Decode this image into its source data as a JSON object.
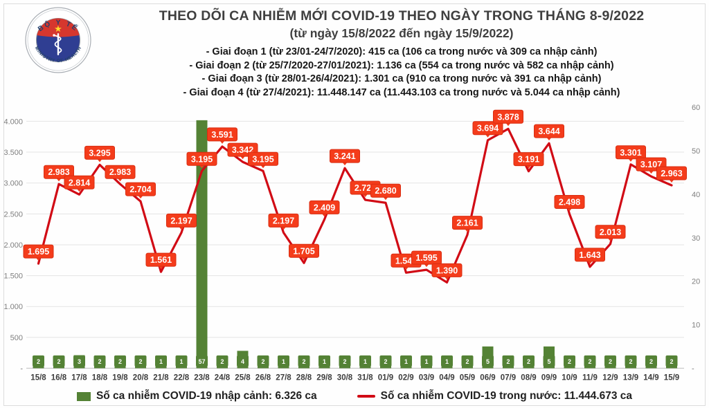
{
  "logo": {
    "top_text": "BỘ Y TẾ",
    "bottom_text": "MINISTRY OF HEALTH",
    "star": "★",
    "colors": {
      "ring": "#a8adb3",
      "disc_blue": "#2f3e92",
      "band_red": "#d6372e",
      "star_yellow": "#ffd92b",
      "text_navy": "#23406e"
    }
  },
  "header": {
    "title": "THEO DÕI CA NHIỄM MỚI COVID-19 THEO NGÀY TRONG THÁNG 8-9/2022",
    "subtitle": "(từ ngày 15/8/2022 đến ngày 15/9/2022)",
    "phases": [
      "- Giai đoạn 1 (từ 23/01-24/7/2020): 415 ca (106 ca trong nước và 309 ca nhập cảnh)",
      "- Giai đoạn 2 (từ 25/7/2020-27/01/2021): 1.136 ca (554 ca trong nước và 582 ca nhập cảnh)",
      "- Giai đoạn 3 (từ 28/01-26/4/2021): 1.301 ca (910 ca trong nước và 391 ca nhập cảnh)",
      "- Giai đoạn 4 (từ 27/4/2021): 11.448.147 ca (11.443.103 ca trong nước và 5.044 ca nhập cảnh)"
    ]
  },
  "chart_data": {
    "type": "combo",
    "title": "",
    "grid": true,
    "legend_position": "bottom",
    "categories": [
      "15/8",
      "16/8",
      "17/8",
      "18/8",
      "19/8",
      "20/8",
      "21/8",
      "22/8",
      "23/8",
      "24/8",
      "25/8",
      "26/8",
      "27/8",
      "28/8",
      "29/8",
      "30/8",
      "31/8",
      "01/9",
      "02/9",
      "03/9",
      "04/9",
      "05/9",
      "06/9",
      "07/9",
      "08/9",
      "09/9",
      "10/9",
      "11/9",
      "12/9",
      "13/9",
      "14/9",
      "15/9"
    ],
    "series": [
      {
        "name": "Số ca nhiễm COVID-19 nhập cảnh",
        "type": "bar",
        "axis": "right",
        "color": "#548235",
        "values": [
          2,
          2,
          3,
          2,
          2,
          2,
          1,
          1,
          57,
          2,
          4,
          2,
          1,
          2,
          1,
          2,
          1,
          2,
          1,
          1,
          1,
          2,
          5,
          2,
          2,
          5,
          2,
          2,
          2,
          2,
          2,
          2
        ],
        "value_labels": [
          "2",
          "2",
          "3",
          "2",
          "2",
          "2",
          "1",
          "1",
          "57",
          "2",
          "4",
          "2",
          "1",
          "2",
          "1",
          "2",
          "1",
          "2",
          "1",
          "1",
          "1",
          "2",
          "5",
          "2",
          "2",
          "5",
          "2",
          "2",
          "2",
          "2",
          "2",
          "2"
        ]
      },
      {
        "name": "Số ca nhiễm COVID-19 trong nước",
        "type": "line",
        "axis": "left",
        "color": "#d10b15",
        "values": [
          1695,
          2983,
          2814,
          3295,
          2983,
          2704,
          1561,
          2197,
          3195,
          3591,
          3342,
          3195,
          2197,
          1705,
          2409,
          3241,
          2727,
          2680,
          1548,
          1595,
          1390,
          2161,
          3694,
          3878,
          3191,
          3644,
          2498,
          1643,
          2013,
          3301,
          3107,
          2963
        ],
        "value_labels": [
          "1.695",
          "2.983",
          "2.814",
          "3.295",
          "2.983",
          "2.704",
          "1.561",
          "2.197",
          "3.195",
          "3.591",
          "3.342",
          "3.195",
          "2.197",
          "1.705",
          "2.409",
          "3.241",
          "2.727",
          "2.680",
          "1.548",
          "1.595",
          "1.390",
          "2.161",
          "3.694",
          "3.878",
          "3.191",
          "3.644",
          "2.498",
          "1.643",
          "2.013",
          "3.301",
          "3.107",
          "2.963"
        ]
      }
    ],
    "left_axis": {
      "min": 0,
      "max": 4000,
      "tick_step": 500,
      "tick_labels": [
        "-",
        "500",
        "1.000",
        "1.500",
        "2.000",
        "2.500",
        "3.000",
        "3.500",
        "4.000"
      ]
    },
    "right_axis": {
      "min": 0,
      "max": 60,
      "tick_step": 10,
      "tick_labels": [
        "-",
        "10",
        "20",
        "30",
        "40",
        "50",
        "60"
      ]
    },
    "label_style": {
      "line_label_bg": "#f43c1b",
      "line_label_border": "#d92c10",
      "label_text_color": "#ffffff"
    }
  },
  "legend": {
    "items": [
      {
        "label": "Số ca nhiễm COVID-19 nhập cảnh: 6.326 ca",
        "swatch": "bar",
        "color": "#548235"
      },
      {
        "label": "Số ca nhiễm COVID-19 trong nước: 11.444.673 ca",
        "swatch": "line",
        "color": "#d10b15"
      }
    ]
  }
}
